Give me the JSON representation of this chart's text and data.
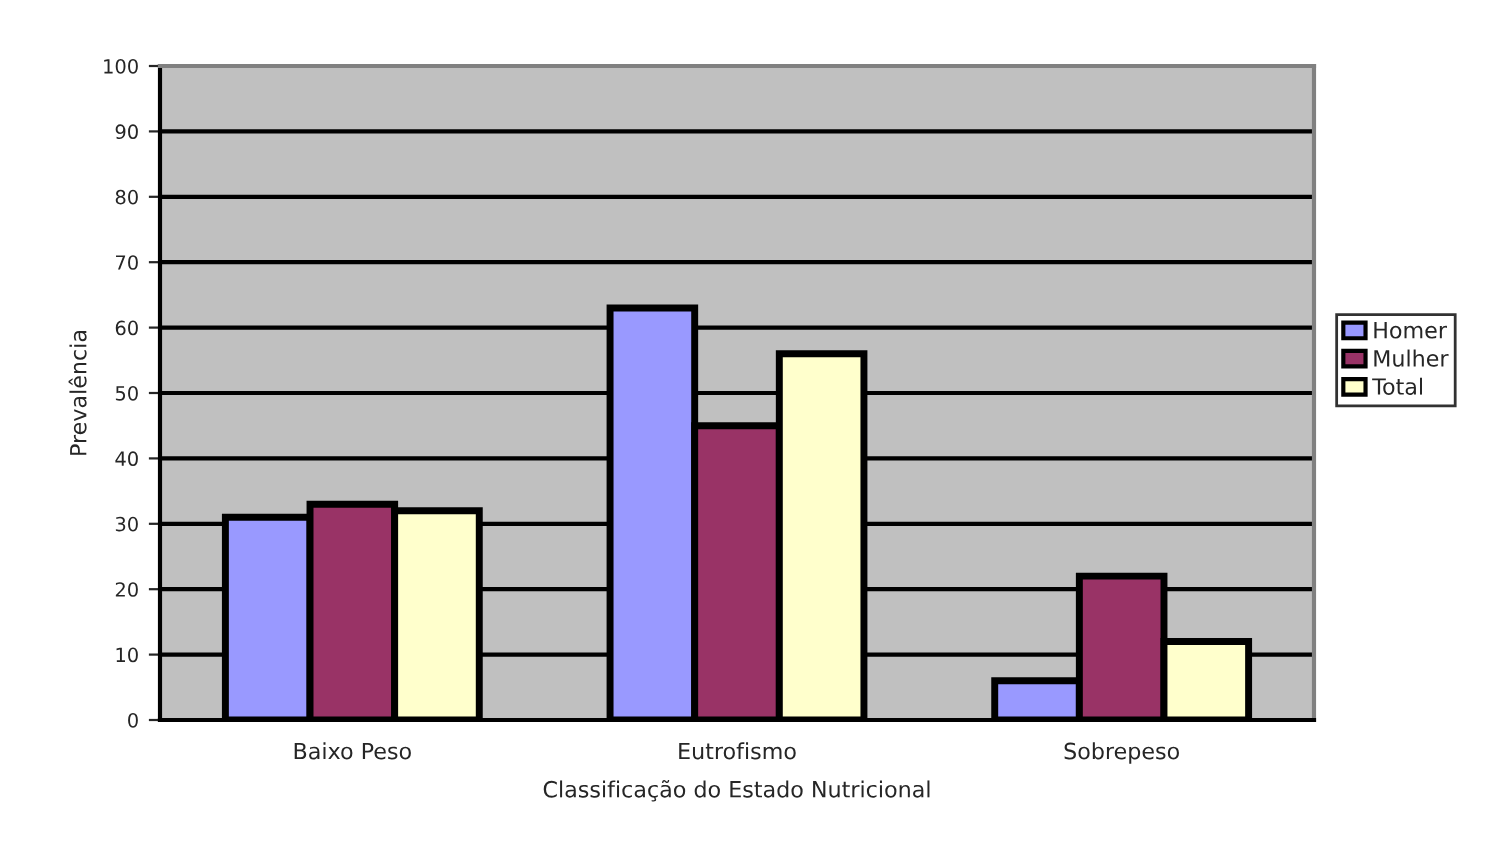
{
  "chart_data": {
    "type": "bar",
    "xlabel": "Classificação do Estado Nutricional",
    "ylabel": "Prevalência",
    "categories": [
      "Baixo Peso",
      "Eutrofismo",
      "Sobrepeso"
    ],
    "series": [
      {
        "name": "Homer",
        "color": "#9999ff",
        "values": [
          31,
          63,
          6
        ]
      },
      {
        "name": "Mulher",
        "color": "#993366",
        "values": [
          33,
          45,
          22
        ]
      },
      {
        "name": "Total",
        "color": "#ffffcc",
        "values": [
          32,
          56,
          12
        ]
      }
    ],
    "ylim": [
      0,
      100
    ],
    "yticks": [
      0,
      10,
      20,
      30,
      40,
      50,
      60,
      70,
      80,
      90,
      100
    ],
    "grid": "y",
    "legend": "right"
  }
}
